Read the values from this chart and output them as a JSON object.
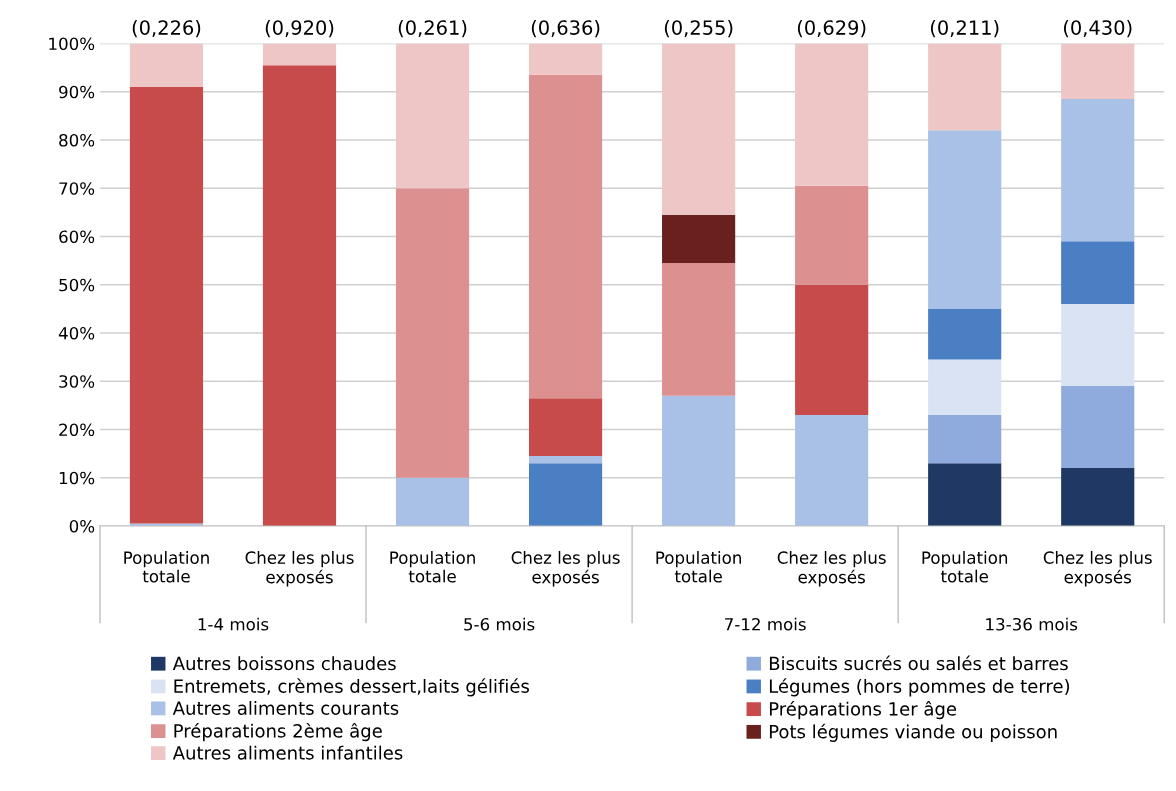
{
  "chart_data": {
    "type": "bar",
    "stacked": true,
    "categories": [
      "Population\ntotale",
      "Chez les plus\nexposés",
      "Population\ntotale",
      "Chez les plus\nexposés",
      "Population\ntotale",
      "Chez les plus\nexposés",
      "Population\ntotale",
      "Chez les plus\nexposés"
    ],
    "series": [
      {
        "name": "Autres boissons chaudes",
        "color": "#203864",
        "values": [
          0,
          0,
          0,
          0,
          0,
          0,
          13,
          12
        ]
      },
      {
        "name": "Biscuits sucrés ou salés et barres",
        "color": "#8faadc",
        "values": [
          0,
          0,
          0,
          0,
          0,
          0,
          10,
          17
        ]
      },
      {
        "name": "Entremets, crèmes dessert,laits gélifiés",
        "color": "#dae3f3",
        "values": [
          0,
          0,
          0,
          0,
          0,
          0,
          11.5,
          17
        ]
      },
      {
        "name": "Légumes (hors pommes de terre)",
        "color": "#4a7fc4",
        "values": [
          0,
          0,
          0,
          13,
          0,
          0,
          10.5,
          13
        ]
      },
      {
        "name": "Autres aliments courants",
        "color": "#a9c1e6",
        "values": [
          0.5,
          0,
          10,
          1.5,
          27,
          23,
          37,
          29.5
        ]
      },
      {
        "name": "Préparations 1er âge",
        "color": "#c84b4b",
        "values": [
          90.5,
          95.5,
          0,
          12,
          0,
          27,
          0,
          0
        ]
      },
      {
        "name": "Préparations 2ème âge",
        "color": "#dc9090",
        "values": [
          0,
          0,
          60,
          67,
          27.5,
          20.5,
          0,
          0
        ]
      },
      {
        "name": "Pots légumes viande ou poisson",
        "color": "#6b2020",
        "values": [
          0,
          0,
          0,
          0,
          10,
          0,
          0,
          0
        ]
      },
      {
        "name": "Autres aliments infantiles",
        "color": "#efc6c6",
        "values": [
          9,
          4.5,
          30,
          6.5,
          35.5,
          29.5,
          18,
          11.5
        ]
      }
    ],
    "annotations": [
      "(0,226)",
      "(0,920)",
      "(0,261)",
      "(0,636)",
      "(0,255)",
      "(0,629)",
      "(0,211)",
      "(0,430)",
      "1-4 mois",
      "5-6 mois",
      "7-12 mois",
      "13-36 mois"
    ],
    "ylim": [
      0,
      100
    ],
    "yticks": [
      {
        "value": 0,
        "label": "0%"
      },
      {
        "value": 10,
        "label": "10%"
      },
      {
        "value": 20,
        "label": "20%"
      },
      {
        "value": 30,
        "label": "30%"
      },
      {
        "value": 40,
        "label": "40%"
      },
      {
        "value": 50,
        "label": "50%"
      },
      {
        "value": 60,
        "label": "60%"
      },
      {
        "value": 70,
        "label": "70%"
      },
      {
        "value": 80,
        "label": "80%"
      },
      {
        "value": 90,
        "label": "90%"
      },
      {
        "value": 100,
        "label": "100%"
      }
    ],
    "grid": "y",
    "legend": "bottom"
  }
}
